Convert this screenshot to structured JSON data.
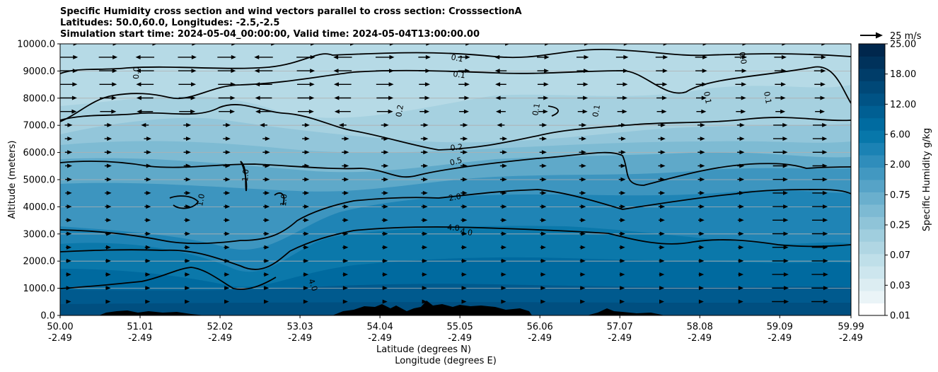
{
  "header": {
    "title_line1": "Specific Humidity cross section and wind vectors parallel to cross section: CrosssectionA",
    "title_line2": "Latitudes: 50.0,60.0, Longitudes: -2.5,-2.5",
    "title_line3": "Simulation start time: 2024-05-04_00:00:00, Valid time: 2024-05-04T13:00:00.00"
  },
  "chart_data": {
    "type": "contourf",
    "xlabel_line1": "Latitude (degrees N)",
    "xlabel_line2": "Longitude (degrees E)",
    "ylabel": "Altitude (meters)",
    "xlim": [
      50.0,
      59.99
    ],
    "ylim": [
      0,
      10000
    ],
    "x_ticks": [
      {
        "lat": "50.00",
        "lon": "-2.49"
      },
      {
        "lat": "51.01",
        "lon": "-2.49"
      },
      {
        "lat": "52.02",
        "lon": "-2.49"
      },
      {
        "lat": "53.03",
        "lon": "-2.49"
      },
      {
        "lat": "54.04",
        "lon": "-2.49"
      },
      {
        "lat": "55.05",
        "lon": "-2.49"
      },
      {
        "lat": "56.06",
        "lon": "-2.49"
      },
      {
        "lat": "57.07",
        "lon": "-2.49"
      },
      {
        "lat": "58.08",
        "lon": "-2.49"
      },
      {
        "lat": "59.09",
        "lon": "-2.49"
      },
      {
        "lat": "59.99",
        "lon": "-2.49"
      }
    ],
    "y_ticks": [
      "0.0",
      "1000.0",
      "2000.0",
      "3000.0",
      "4000.0",
      "5000.0",
      "6000.0",
      "7000.0",
      "8000.0",
      "9000.0",
      "10000.0"
    ],
    "colorbar": {
      "label": "Specific Humidity g/kg",
      "levels": [
        0.01,
        0.02,
        0.03,
        0.05,
        0.07,
        0.1,
        0.15,
        0.25,
        0.35,
        0.5,
        0.75,
        1.0,
        1.5,
        2.0,
        3.0,
        4.0,
        6.0,
        8.0,
        12.0,
        15.0,
        18.0,
        21.0,
        25.0
      ],
      "tick_labels": [
        "0.01",
        "0.03",
        "0.07",
        "0.25",
        "0.75",
        "2.00",
        "6.00",
        "12.00",
        "18.00",
        "25.00"
      ],
      "colors": [
        "#ffffff",
        "#eaf4f7",
        "#dcedf2",
        "#cde6ee",
        "#bfdfe9",
        "#b0d6e3",
        "#a0cede",
        "#8fc4d8",
        "#7dbad3",
        "#6aafcd",
        "#56a3c7",
        "#4298c1",
        "#2f8dbb",
        "#1b82b4",
        "#0777aa",
        "#006ba0",
        "#005f93",
        "#005385",
        "#004877",
        "#003d69",
        "#00325b",
        "#00274d"
      ]
    },
    "contours": [
      {
        "level": "0.1",
        "label_count": 6
      },
      {
        "level": "0.2",
        "label_count": 2
      },
      {
        "level": "0.5",
        "label_count": 1
      },
      {
        "level": "1.0",
        "label_count": 4
      },
      {
        "level": "2.0",
        "label_count": 1
      },
      {
        "level": "4.0",
        "label_count": 2
      }
    ],
    "quiver_key": {
      "label": "25 m/s",
      "speed": 25
    },
    "terrain_note": "black terrain silhouette along surface"
  }
}
